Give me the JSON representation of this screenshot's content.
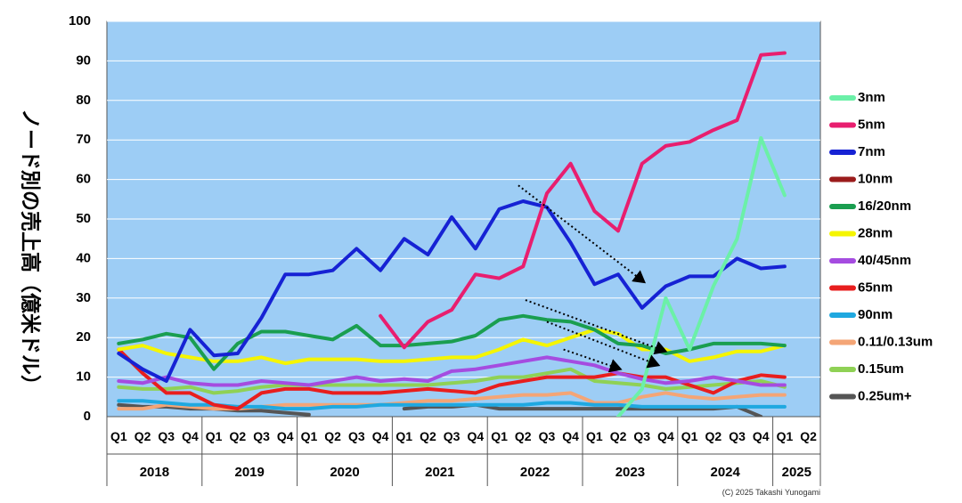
{
  "chart_data": {
    "type": "line",
    "title": "",
    "ylabel": "ノード別の売上高（億米ドル）",
    "xlabel": "",
    "ylim": [
      0,
      100
    ],
    "yticks": [
      0,
      10,
      20,
      30,
      40,
      50,
      60,
      70,
      80,
      90,
      100
    ],
    "grid": true,
    "legend_position": "right",
    "categories": [
      "Q1",
      "Q2",
      "Q3",
      "Q4",
      "Q1",
      "Q2",
      "Q3",
      "Q4",
      "Q1",
      "Q2",
      "Q3",
      "Q4",
      "Q1",
      "Q2",
      "Q3",
      "Q4",
      "Q1",
      "Q2",
      "Q3",
      "Q4",
      "Q1",
      "Q2",
      "Q3",
      "Q4",
      "Q1",
      "Q2",
      "Q3",
      "Q4",
      "Q1",
      "Q2"
    ],
    "years": [
      {
        "label": "2018",
        "start": 0,
        "span": 4
      },
      {
        "label": "2019",
        "start": 4,
        "span": 4
      },
      {
        "label": "2020",
        "start": 8,
        "span": 4
      },
      {
        "label": "2021",
        "start": 12,
        "span": 4
      },
      {
        "label": "2022",
        "start": 16,
        "span": 4
      },
      {
        "label": "2023",
        "start": 20,
        "span": 4
      },
      {
        "label": "2024",
        "start": 24,
        "span": 4
      },
      {
        "label": "2025",
        "start": 28,
        "span": 2
      }
    ],
    "series": [
      {
        "name": "0.25um+",
        "color": "#555555",
        "values": [
          3,
          2.5,
          2.5,
          2,
          2,
          1.5,
          1.5,
          1,
          0.5,
          null,
          null,
          null,
          2,
          2.5,
          2.5,
          3,
          2,
          2,
          2,
          2,
          2,
          2,
          2,
          2,
          2,
          2,
          2.5,
          0,
          null,
          null
        ]
      },
      {
        "name": "0.15um",
        "color": "#8fd155",
        "values": [
          7.5,
          7,
          7,
          7.5,
          6,
          6.5,
          7.5,
          8,
          8,
          8,
          8,
          8,
          8,
          8,
          8.5,
          9,
          10,
          10,
          11,
          12,
          9,
          8.5,
          8,
          7,
          7.5,
          8,
          8.5,
          9,
          7.5,
          null
        ]
      },
      {
        "name": "0.11/0.13um",
        "color": "#f4a576",
        "values": [
          2,
          2,
          3,
          2.5,
          2,
          2,
          2.5,
          3,
          3,
          3,
          3,
          3,
          3.5,
          4,
          4,
          4.5,
          5,
          5.5,
          5.5,
          6,
          3.5,
          3.5,
          5,
          6,
          5,
          4.5,
          5,
          5.5,
          5.5,
          null
        ]
      },
      {
        "name": "90nm",
        "color": "#1fa8e0",
        "values": [
          4,
          4,
          3.5,
          3,
          3,
          2.5,
          2.5,
          2,
          2,
          2.5,
          2.5,
          3,
          3,
          3,
          3,
          3,
          3,
          3,
          3.5,
          3.5,
          3,
          3,
          2.5,
          2.5,
          2.5,
          2.5,
          2.5,
          2.5,
          2.5,
          null
        ]
      },
      {
        "name": "65nm",
        "color": "#e81e1e",
        "values": [
          17,
          11,
          6,
          6,
          3,
          2,
          6,
          7,
          7,
          6,
          6,
          6,
          6.5,
          7,
          6.5,
          6,
          8,
          9,
          10,
          10,
          10,
          11,
          10,
          10,
          8,
          6,
          9,
          10.5,
          10,
          null
        ]
      },
      {
        "name": "40/45nm",
        "color": "#a54ce0",
        "values": [
          9,
          8.5,
          10,
          8.5,
          8,
          8,
          9,
          8.5,
          8,
          9,
          10,
          9,
          9.5,
          9,
          11.5,
          12,
          13,
          14,
          15,
          14,
          13,
          11,
          9.5,
          8.5,
          9,
          10,
          9,
          8,
          8,
          null
        ]
      },
      {
        "name": "28nm",
        "color": "#f5f500",
        "values": [
          17,
          18,
          16,
          15,
          14,
          14,
          15,
          13.5,
          14.5,
          14.5,
          14.5,
          14,
          14,
          14.5,
          15,
          15,
          17,
          19.5,
          18,
          20,
          22,
          21,
          17,
          17,
          14,
          15,
          16.5,
          16.5,
          18,
          null
        ]
      },
      {
        "name": "16/20nm",
        "color": "#1a9e50",
        "values": [
          18.5,
          19.5,
          21,
          20,
          12,
          18.5,
          21.5,
          21.5,
          20.5,
          19.5,
          23,
          18,
          18,
          18.5,
          19,
          20.5,
          24.5,
          25.5,
          24.5,
          24,
          22,
          18.5,
          18,
          16,
          17,
          18.5,
          18.5,
          18.5,
          18,
          null
        ]
      },
      {
        "name": "10nm",
        "color": "#9b1c1c",
        "values": [
          null,
          null,
          null,
          null,
          null,
          null,
          null,
          null,
          null,
          null,
          null,
          null,
          null,
          null,
          null,
          null,
          null,
          null,
          null,
          null,
          null,
          null,
          null,
          null,
          null,
          null,
          null,
          null,
          null,
          null
        ]
      },
      {
        "name": "7nm",
        "color": "#1622d4",
        "values": [
          16,
          12,
          9,
          22,
          15.5,
          16,
          25,
          36,
          36,
          37,
          42.5,
          37,
          45,
          41,
          50.5,
          42.5,
          52.5,
          54.5,
          53,
          44,
          33.5,
          36,
          27.5,
          33,
          35.5,
          35.5,
          40,
          37.5,
          38,
          null
        ]
      },
      {
        "name": "5nm",
        "color": "#e81e6f",
        "values": [
          null,
          null,
          null,
          null,
          null,
          null,
          null,
          null,
          null,
          null,
          null,
          25.5,
          17.5,
          24,
          27,
          36,
          35,
          38,
          56.5,
          64,
          52,
          47,
          64,
          68.5,
          69.5,
          72.5,
          75,
          91.5,
          92,
          null
        ]
      },
      {
        "name": "3nm",
        "color": "#6bf0a8",
        "values": [
          null,
          null,
          null,
          null,
          null,
          null,
          null,
          null,
          null,
          null,
          null,
          null,
          null,
          null,
          null,
          null,
          null,
          null,
          null,
          null,
          null,
          0,
          7,
          30,
          17,
          33,
          45,
          70.5,
          56,
          null
        ]
      }
    ],
    "legend": [
      "3nm",
      "5nm",
      "7nm",
      "10nm",
      "16/20nm",
      "28nm",
      "40/45nm",
      "65nm",
      "90nm",
      "0.11/0.13um",
      "0.15um",
      "0.25um+"
    ],
    "annotations": [
      {
        "type": "dotted-arrow",
        "from": [
          17.3,
          58.5
        ],
        "to": [
          22.6,
          34
        ]
      },
      {
        "type": "dotted-arrow",
        "from": [
          17.6,
          29.5
        ],
        "to": [
          23.5,
          16.5
        ]
      },
      {
        "type": "dotted-arrow",
        "from": [
          18.5,
          24
        ],
        "to": [
          23.2,
          13
        ]
      },
      {
        "type": "dotted-arrow",
        "from": [
          19.2,
          17
        ],
        "to": [
          21.6,
          12
        ]
      }
    ],
    "copyright": "(C) 2025 Takashi Yunogami"
  }
}
